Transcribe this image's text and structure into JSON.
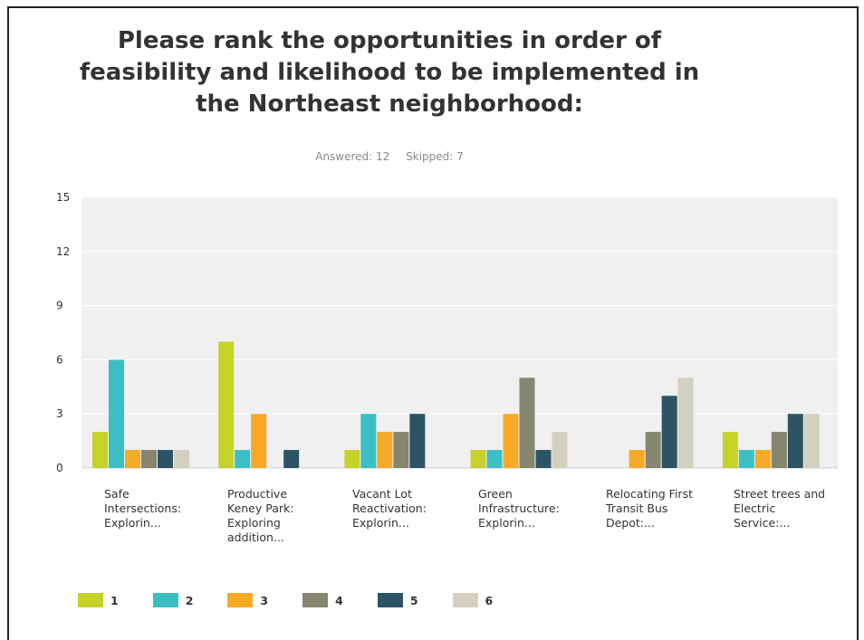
{
  "title": "Please rank the opportunities in order of feasibility and likelihood to be implemented in the Northeast neighborhood:",
  "stats": {
    "answered": "Answered: 12",
    "skipped": "Skipped: 7"
  },
  "chart_data": {
    "type": "bar",
    "title": "Please rank the opportunities in order of feasibility and likelihood to be implemented in the Northeast neighborhood:",
    "categories": [
      "Safe Intersections: Explorin...",
      "Productive Keney Park: Exploring addition...",
      "Vacant Lot Reactivation: Explorin...",
      "Green Infrastructure: Explorin...",
      "Relocating First Transit Bus Depot:...",
      "Street trees and Electric Service:..."
    ],
    "series": [
      {
        "name": "1",
        "color": "#c6d22a",
        "values": [
          2,
          7,
          1,
          1,
          0,
          2
        ]
      },
      {
        "name": "2",
        "color": "#3bbfc4",
        "values": [
          6,
          1,
          3,
          1,
          0,
          1
        ]
      },
      {
        "name": "3",
        "color": "#f6aa26",
        "values": [
          1,
          3,
          2,
          3,
          1,
          1
        ]
      },
      {
        "name": "4",
        "color": "#868670",
        "values": [
          1,
          0,
          2,
          5,
          2,
          2
        ]
      },
      {
        "name": "5",
        "color": "#2c5465",
        "values": [
          1,
          1,
          3,
          1,
          4,
          3
        ]
      },
      {
        "name": "6",
        "color": "#d3d0c0",
        "values": [
          1,
          0,
          0,
          2,
          5,
          3
        ]
      }
    ],
    "yticks": [
      0,
      3,
      6,
      9,
      12,
      15
    ],
    "ylim": [
      0,
      15
    ],
    "grid": true,
    "legend_position": "bottom-left",
    "plot_background": "#f0f0f0"
  }
}
